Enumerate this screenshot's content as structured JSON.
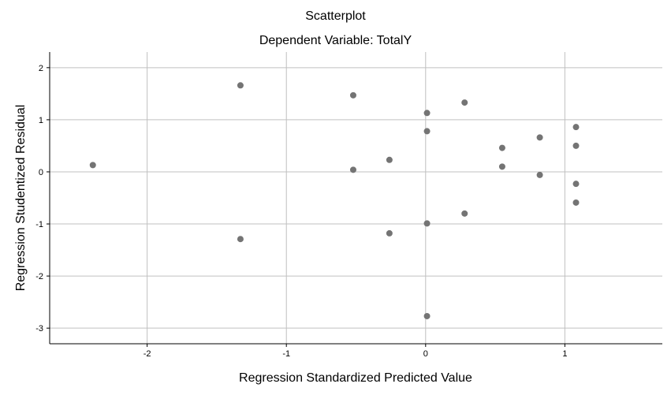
{
  "chart_data": {
    "type": "scatter",
    "title": "Scatterplot",
    "subtitle": "Dependent Variable: TotalY",
    "xlabel": "Regression Standardized Predicted Value",
    "ylabel": "Regression Studentized Residual",
    "xlim": [
      -2.7,
      1.7
    ],
    "ylim": [
      -3.3,
      2.3
    ],
    "xticks": [
      -2,
      -1,
      0,
      1
    ],
    "yticks": [
      -3,
      -2,
      -1,
      0,
      1,
      2
    ],
    "grid": true,
    "marker_color": "#747474",
    "grid_color": "#c0c0c0",
    "points": [
      {
        "x": -2.39,
        "y": 0.13
      },
      {
        "x": -1.33,
        "y": 1.66
      },
      {
        "x": -1.33,
        "y": -1.29
      },
      {
        "x": -0.52,
        "y": 1.47
      },
      {
        "x": -0.52,
        "y": 0.04
      },
      {
        "x": -0.26,
        "y": 0.23
      },
      {
        "x": -0.26,
        "y": -1.18
      },
      {
        "x": 0.01,
        "y": 1.13
      },
      {
        "x": 0.01,
        "y": 0.78
      },
      {
        "x": 0.01,
        "y": -0.99
      },
      {
        "x": 0.01,
        "y": -2.77
      },
      {
        "x": 0.28,
        "y": 1.33
      },
      {
        "x": 0.28,
        "y": -0.8
      },
      {
        "x": 0.55,
        "y": 0.46
      },
      {
        "x": 0.55,
        "y": 0.1
      },
      {
        "x": 0.82,
        "y": 0.66
      },
      {
        "x": 0.82,
        "y": -0.06
      },
      {
        "x": 1.08,
        "y": 0.86
      },
      {
        "x": 1.08,
        "y": 0.5
      },
      {
        "x": 1.08,
        "y": -0.23
      },
      {
        "x": 1.08,
        "y": -0.59
      }
    ]
  }
}
